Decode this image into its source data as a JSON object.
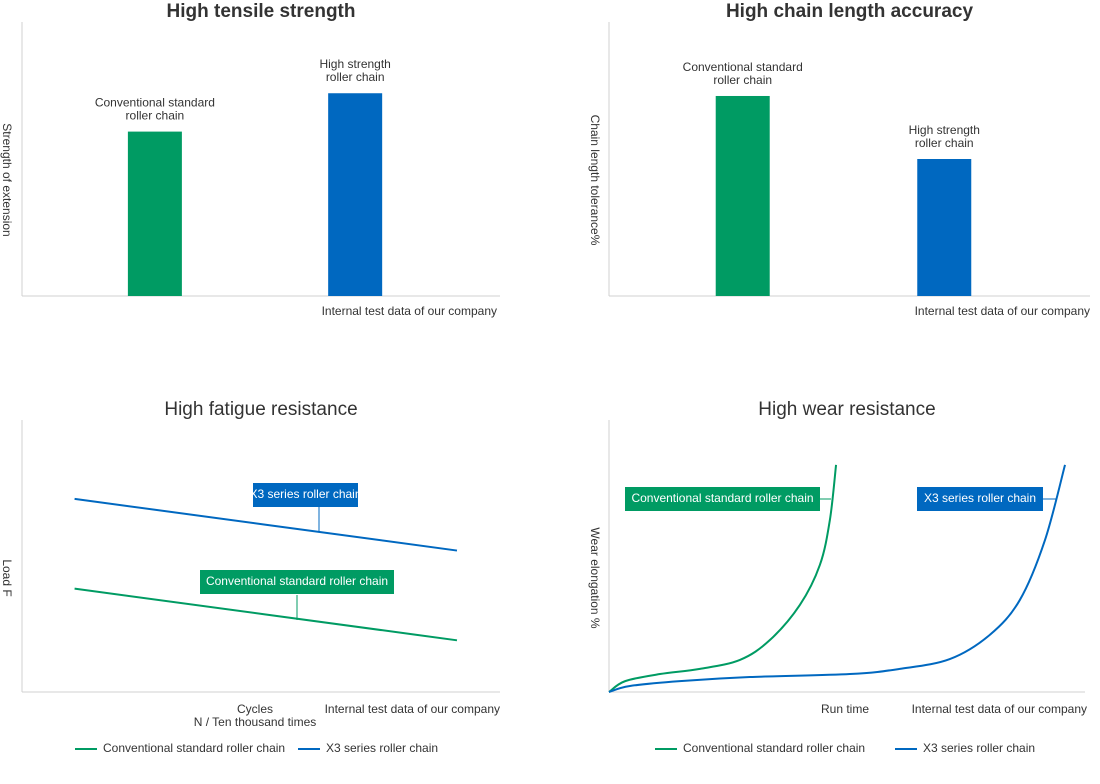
{
  "chart_data": [
    {
      "type": "bar",
      "title": "High tensile strength",
      "ylabel": "Strength of extension",
      "note": "Internal test data of our company",
      "categories": [
        "Conventional standard\nroller chain",
        "High strength\nroller chain"
      ],
      "values": [
        60,
        74
      ],
      "colors": [
        "#009b63",
        "#0068c0"
      ],
      "ylim": [
        0,
        100
      ]
    },
    {
      "type": "bar",
      "title": "High chain length accuracy",
      "ylabel": "Chain length tolerance%",
      "note": "Internal test data of our company",
      "categories": [
        "Conventional standard\nroller chain",
        "High strength\nroller chain"
      ],
      "values": [
        73,
        50
      ],
      "colors": [
        "#009b63",
        "#0068c0"
      ],
      "ylim": [
        0,
        100
      ]
    },
    {
      "type": "line",
      "title": "High fatigue resistance",
      "ylabel": "Load F",
      "xlabel": "Cycles\nN / Ten thousand times",
      "note": "Internal test data of our company",
      "xlim": [
        0,
        100
      ],
      "ylim": [
        0,
        100
      ],
      "series": [
        {
          "name": "Conventional standard roller chain",
          "color": "#009b63",
          "x": [
            11,
            91
          ],
          "values": [
            38,
            19
          ]
        },
        {
          "name": "X3 series roller chain",
          "color": "#0068c0",
          "x": [
            11,
            91
          ],
          "values": [
            71,
            52
          ]
        }
      ]
    },
    {
      "type": "line",
      "title": "High wear resistance",
      "ylabel": "Wear elongation %",
      "xlabel": "Run time",
      "note": "Internal test data of our company",
      "xlim": [
        0,
        100
      ],
      "ylim": [
        0,
        100
      ],
      "series": [
        {
          "name": "Conventional standard roller chain",
          "color": "#009b63",
          "x": [
            0,
            3.4,
            10.7,
            19.1,
            27.5,
            33.8,
            40.1,
            44.3,
            46.4,
            47.7
          ],
          "values": [
            0,
            4.0,
            6.6,
            8.5,
            11.8,
            19.1,
            32.0,
            46.7,
            63.2,
            83.5
          ]
        },
        {
          "name": "X3 series roller chain",
          "color": "#0068c0",
          "x": [
            0,
            4.4,
            14.9,
            29.6,
            50.6,
            61.1,
            71.6,
            80.0,
            86.3,
            91.6,
            95.8
          ],
          "values": [
            0,
            2.2,
            4.0,
            5.5,
            6.6,
            8.5,
            12.1,
            21.0,
            33.8,
            55.9,
            83.5
          ]
        }
      ]
    }
  ]
}
